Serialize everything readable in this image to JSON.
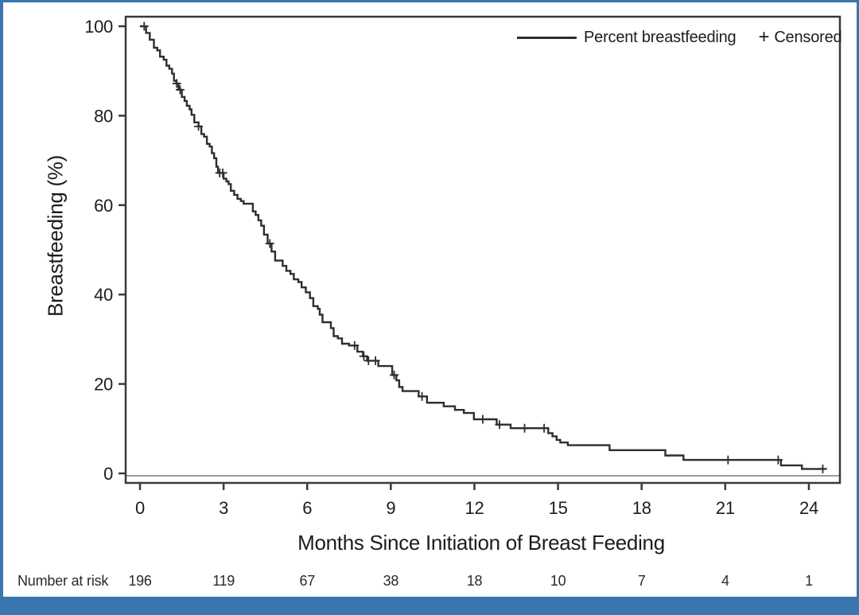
{
  "figure": {
    "accent_color": "#3876ad",
    "curve_color": "#2e2e2e",
    "axis_color": "#3a3a3a",
    "zero_line_color": "#a59898"
  },
  "chart_data": {
    "type": "line",
    "subtype": "kaplan-meier-step-curve",
    "title": "",
    "xlabel": "Months Since Initiation of Breast Feeding",
    "ylabel": "Breastfeeding (%)",
    "xlim": [
      0,
      25
    ],
    "ylim": [
      0,
      100
    ],
    "x_ticks": [
      0,
      3,
      6,
      9,
      12,
      15,
      18,
      21,
      24
    ],
    "y_ticks": [
      0,
      20,
      40,
      60,
      80,
      100
    ],
    "grid": false,
    "legend_position": "top-right-inside",
    "legend": [
      {
        "label": "Percent breastfeeding",
        "marker": "line"
      },
      {
        "label": "Censored",
        "marker": "plus",
        "marker_glyph": "+"
      }
    ],
    "reference_line_y": 0,
    "series": [
      {
        "name": "Percent breastfeeding",
        "step_points": [
          [
            0,
            100
          ],
          [
            0.22,
            98.5
          ],
          [
            0.35,
            97.0
          ],
          [
            0.5,
            95.2
          ],
          [
            0.62,
            94.6
          ],
          [
            0.72,
            93.2
          ],
          [
            0.85,
            92.5
          ],
          [
            0.95,
            91.2
          ],
          [
            1.05,
            90.5
          ],
          [
            1.15,
            89.4
          ],
          [
            1.22,
            87.8
          ],
          [
            1.3,
            87.2
          ],
          [
            1.38,
            85.8
          ],
          [
            1.5,
            84.2
          ],
          [
            1.6,
            83.3
          ],
          [
            1.68,
            82.2
          ],
          [
            1.78,
            81.4
          ],
          [
            1.85,
            80.2
          ],
          [
            1.95,
            78.5
          ],
          [
            2.1,
            77.6
          ],
          [
            2.2,
            75.9
          ],
          [
            2.3,
            75.3
          ],
          [
            2.4,
            73.7
          ],
          [
            2.5,
            73.1
          ],
          [
            2.58,
            71.6
          ],
          [
            2.66,
            70.5
          ],
          [
            2.74,
            68.6
          ],
          [
            2.8,
            67.2
          ],
          [
            3.0,
            65.9
          ],
          [
            3.1,
            65.3
          ],
          [
            3.18,
            64.7
          ],
          [
            3.26,
            63.2
          ],
          [
            3.38,
            62.3
          ],
          [
            3.5,
            61.4
          ],
          [
            3.62,
            60.9
          ],
          [
            3.72,
            60.3
          ],
          [
            4.05,
            58.6
          ],
          [
            4.15,
            57.8
          ],
          [
            4.25,
            56.6
          ],
          [
            4.35,
            55.4
          ],
          [
            4.45,
            53.4
          ],
          [
            4.58,
            51.4
          ],
          [
            4.72,
            49.6
          ],
          [
            4.85,
            47.6
          ],
          [
            5.12,
            46.4
          ],
          [
            5.25,
            45.3
          ],
          [
            5.4,
            44.6
          ],
          [
            5.52,
            43.4
          ],
          [
            5.68,
            42.8
          ],
          [
            5.8,
            41.6
          ],
          [
            5.95,
            40.5
          ],
          [
            6.1,
            39.2
          ],
          [
            6.22,
            37.4
          ],
          [
            6.38,
            36.8
          ],
          [
            6.45,
            35.5
          ],
          [
            6.55,
            33.8
          ],
          [
            6.85,
            32.5
          ],
          [
            6.95,
            30.7
          ],
          [
            7.1,
            30.2
          ],
          [
            7.25,
            29.0
          ],
          [
            7.5,
            28.6
          ],
          [
            7.8,
            27.2
          ],
          [
            8.0,
            26.2
          ],
          [
            8.15,
            25.2
          ],
          [
            8.55,
            24.0
          ],
          [
            9.05,
            22.0
          ],
          [
            9.2,
            20.8
          ],
          [
            9.3,
            19.3
          ],
          [
            9.42,
            18.4
          ],
          [
            10.0,
            17.2
          ],
          [
            10.3,
            15.8
          ],
          [
            10.9,
            15.0
          ],
          [
            11.3,
            14.2
          ],
          [
            11.62,
            13.5
          ],
          [
            11.98,
            12.1
          ],
          [
            12.8,
            10.9
          ],
          [
            13.3,
            10.1
          ],
          [
            14.65,
            9.0
          ],
          [
            14.8,
            8.3
          ],
          [
            14.95,
            7.5
          ],
          [
            15.08,
            6.9
          ],
          [
            15.35,
            6.3
          ],
          [
            16.85,
            5.2
          ],
          [
            18.85,
            4.0
          ],
          [
            19.5,
            3.0
          ],
          [
            23.0,
            1.8
          ],
          [
            23.75,
            1.0
          ],
          [
            24.6,
            1.0
          ]
        ]
      }
    ],
    "censored_points": [
      [
        0.15,
        100
      ],
      [
        1.32,
        87.2
      ],
      [
        1.44,
        85.8
      ],
      [
        2.1,
        77.6
      ],
      [
        2.86,
        67.2
      ],
      [
        2.97,
        67.2
      ],
      [
        4.66,
        51.4
      ],
      [
        7.7,
        28.6
      ],
      [
        8.03,
        26.2
      ],
      [
        8.2,
        25.2
      ],
      [
        8.45,
        25.2
      ],
      [
        9.12,
        22.0
      ],
      [
        10.12,
        17.2
      ],
      [
        12.3,
        12.1
      ],
      [
        12.9,
        10.9
      ],
      [
        13.8,
        10.1
      ],
      [
        14.5,
        10.1
      ],
      [
        21.1,
        3.0
      ],
      [
        22.9,
        3.0
      ],
      [
        24.5,
        1.0
      ]
    ],
    "at_risk": {
      "label": "Number at risk",
      "months": [
        0,
        3,
        6,
        9,
        12,
        15,
        18,
        21,
        24
      ],
      "values": [
        196,
        119,
        67,
        38,
        18,
        10,
        7,
        4,
        1
      ]
    }
  }
}
